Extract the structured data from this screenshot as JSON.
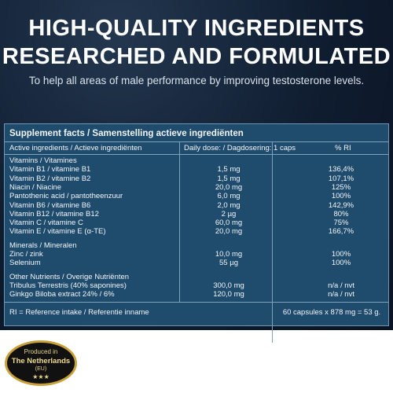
{
  "header": {
    "title_line1": "HIGH-QUALITY INGREDIENTS",
    "title_line2": "RESEARCHED AND FORMULATED",
    "subtitle": "To help all areas of male performance by improving testosterone levels."
  },
  "table": {
    "title": "Supplement facts / Samenstelling actieve ingrediënten",
    "columns": [
      "Active ingredients / Actieve ingrediënten",
      "Daily dose: / Dagdosering: 1 caps",
      "% RI"
    ],
    "sections": [
      {
        "name": "Vitamins / Vitamines",
        "rows": [
          [
            "Vitamin B1 / vitamine B1",
            "1,5 mg",
            "136,4%"
          ],
          [
            "Vitamin B2 / vitamine B2",
            "1,5 mg",
            "107,1%"
          ],
          [
            "Niacin / Niacine",
            "20,0 mg",
            "125%"
          ],
          [
            "Pantothenic acid / pantotheenzuur",
            "6,0 mg",
            "100%"
          ],
          [
            "Vitamin B6 / vitamine B6",
            "2,0 mg",
            "142,9%"
          ],
          [
            "Vitamin B12 / vitamine B12",
            "2 µg",
            "80%"
          ],
          [
            "Vitamin C / vitamine C",
            "60,0 mg",
            "75%"
          ],
          [
            "Vitamin E / vitamine E (α-TE)",
            "20,0 mg",
            "166,7%"
          ]
        ]
      },
      {
        "name": "Minerals / Mineralen",
        "rows": [
          [
            "Zinc / zink",
            "10,0 mg",
            "100%"
          ],
          [
            "Selenium",
            "55 µg",
            "100%"
          ]
        ]
      },
      {
        "name": "Other Nutrients / Overige Nutriënten",
        "rows": [
          [
            "Tribulus Terrestris (40% saponines)",
            "300,0 mg",
            "n/a / nvt"
          ],
          [
            "Ginkgo Biloba extract 24% / 6%",
            "120,0 mg",
            "n/a / nvt"
          ]
        ]
      }
    ],
    "footer_left": "RI = Reference intake / Referentie inname",
    "footer_right": "60 capsules x 878 mg = 53 g."
  },
  "badge": {
    "line1": "Produced in",
    "line2": "The Netherlands",
    "line3": "(EU)",
    "stars": "★★★"
  }
}
